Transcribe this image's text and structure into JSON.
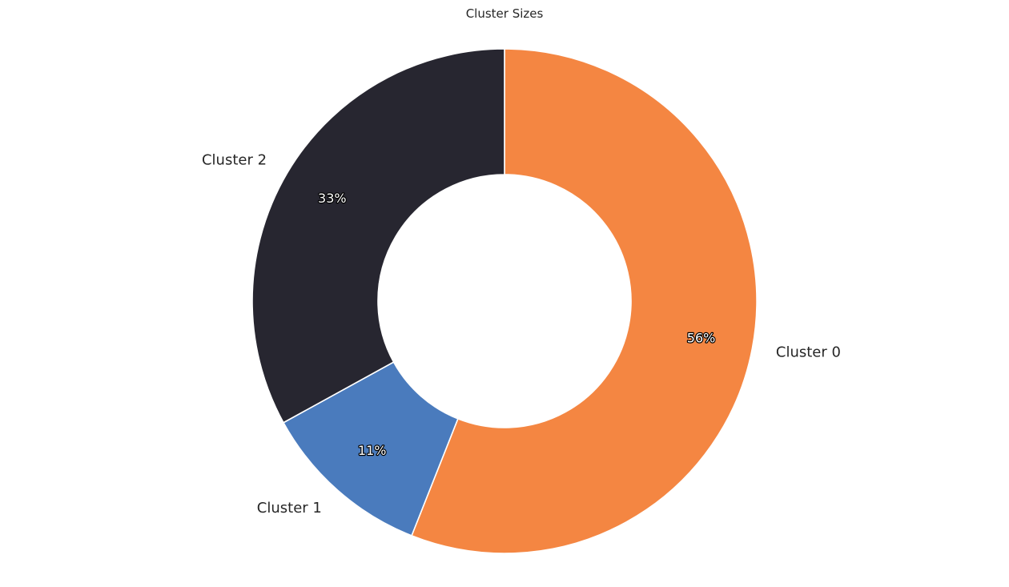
{
  "chart_data": {
    "type": "pie",
    "title": "Cluster Sizes",
    "donut": true,
    "start_angle_deg": 90,
    "direction": "clockwise-from-top",
    "slices": [
      {
        "label": "Cluster 0",
        "value": 56,
        "percent_label": "56%",
        "color": "#f48642"
      },
      {
        "label": "Cluster 1",
        "value": 11,
        "percent_label": "11%",
        "color": "#4a7bbd"
      },
      {
        "label": "Cluster 2",
        "value": 33,
        "percent_label": "33%",
        "color": "#272630"
      }
    ]
  }
}
